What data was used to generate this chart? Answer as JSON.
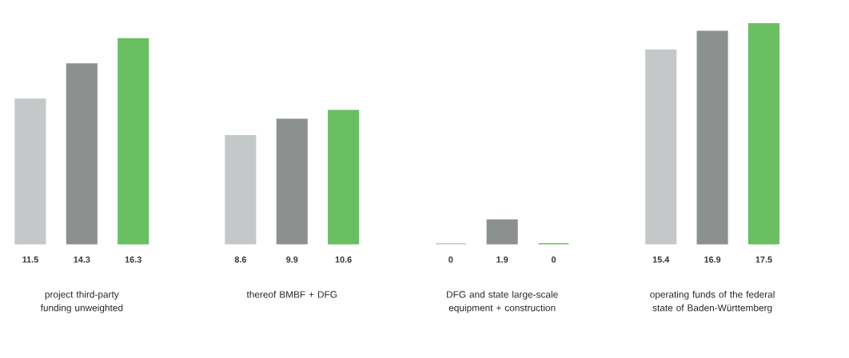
{
  "chart_data": {
    "type": "bar",
    "categories": [
      "project third-party funding unweighted",
      "thereof BMBF + DFG",
      "DFG and state large-scale equipment + construction",
      "operating funds of the federal state of Baden-Württemberg"
    ],
    "series": [
      {
        "color": "#c4c8c8",
        "values": [
          11.5,
          8.6,
          0,
          15.4
        ]
      },
      {
        "color": "#8c9190",
        "values": [
          14.3,
          9.9,
          1.9,
          16.9
        ]
      },
      {
        "color": "#6abf62",
        "values": [
          16.3,
          10.6,
          0,
          17.5
        ]
      }
    ],
    "data_labels": true
  }
}
